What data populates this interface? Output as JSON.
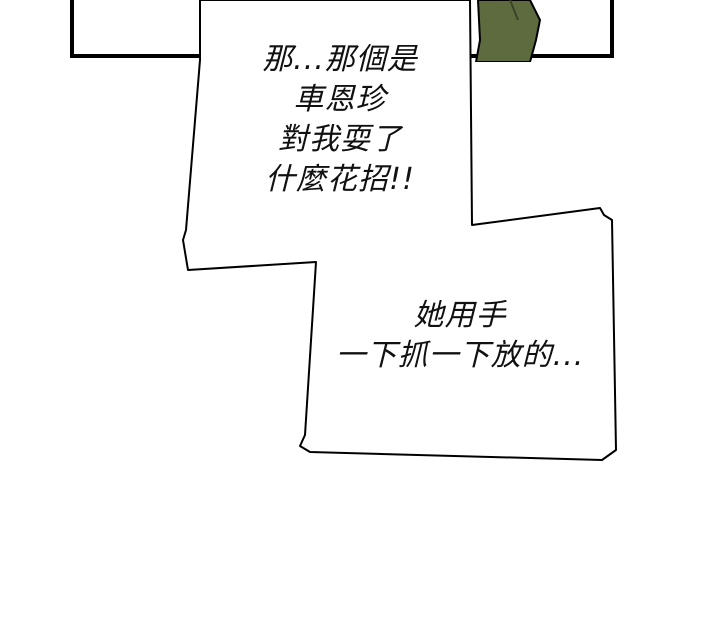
{
  "dialogue": {
    "bubble_1": {
      "lines": [
        "那...那個是",
        "車恩珍",
        "對我耍了",
        "什麼花招!!"
      ]
    },
    "bubble_2": {
      "lines": [
        "她用手",
        "一下抓一下放的..."
      ]
    }
  },
  "colors": {
    "background": "#ffffff",
    "outline": "#000000",
    "figure": "#5e6b3f"
  }
}
